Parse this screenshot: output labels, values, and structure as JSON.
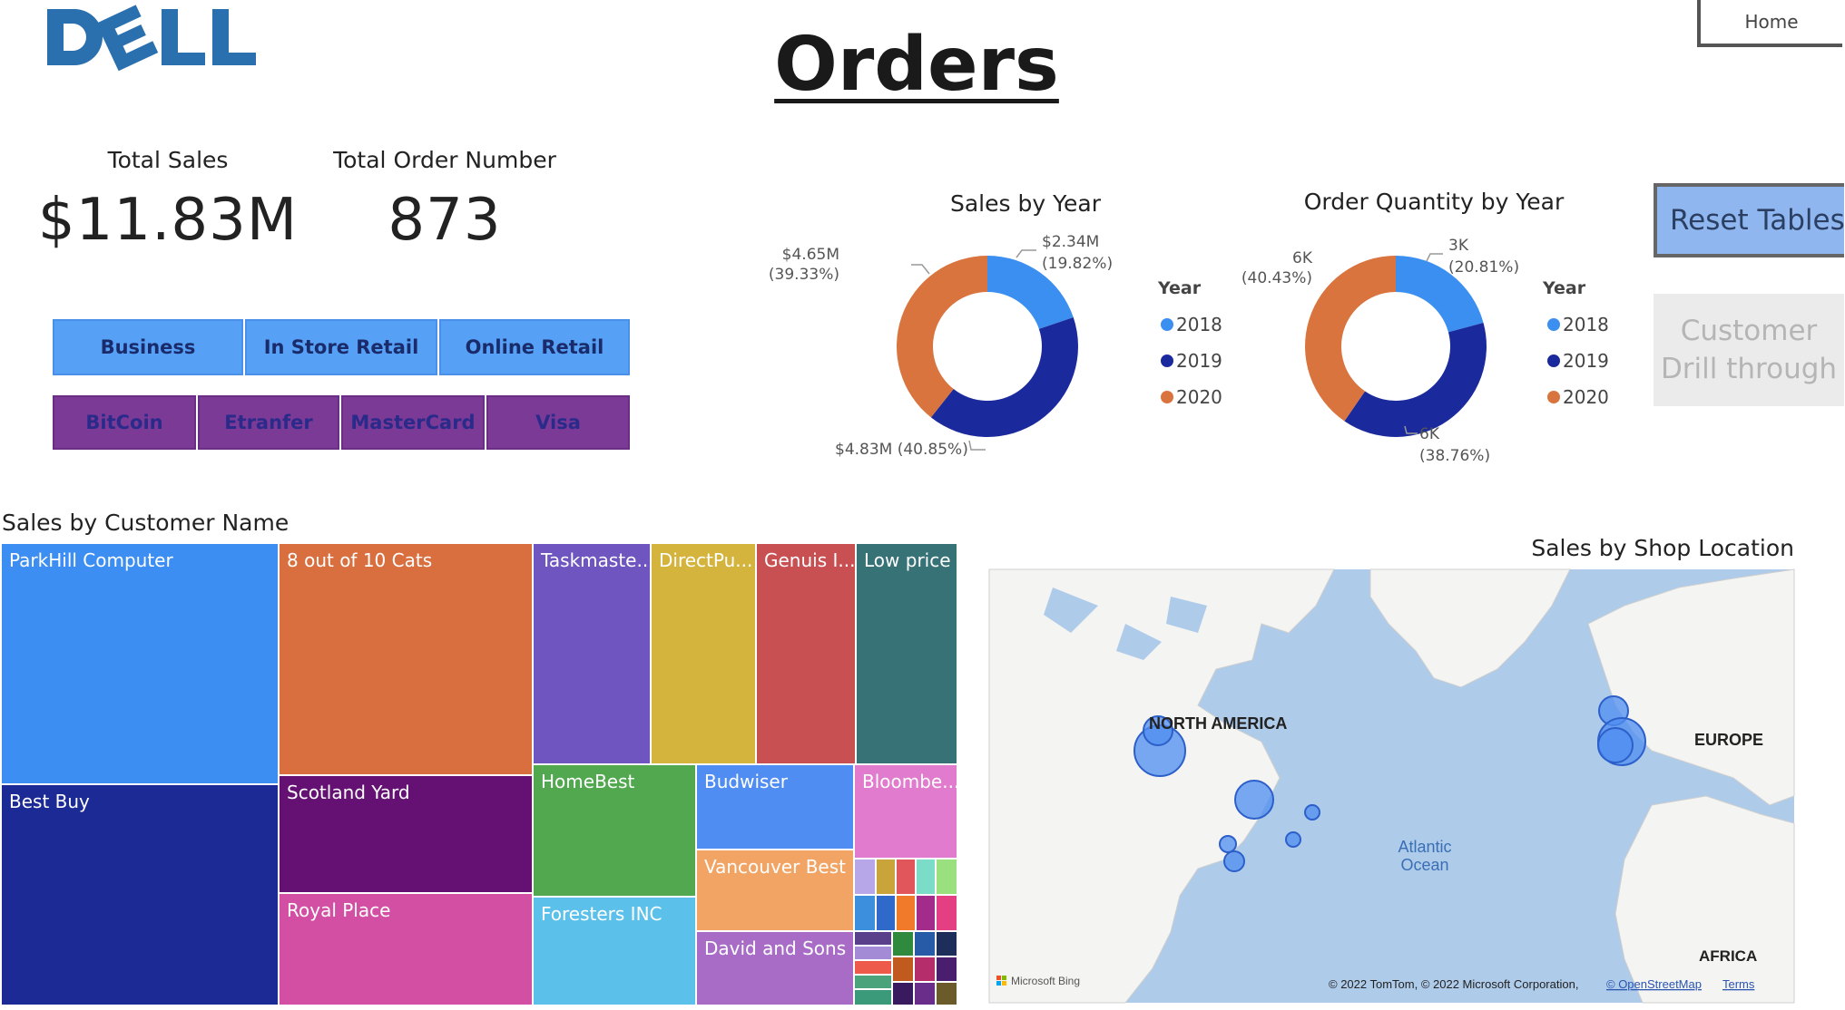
{
  "brand": {
    "logo_text": "DELL",
    "logo_color": "#2a6fae"
  },
  "header": {
    "title": "Orders",
    "home_label": "Home"
  },
  "kpis": {
    "total_sales_label": "Total Sales",
    "total_sales_value": "$11.83M",
    "total_orders_label": "Total Order Number",
    "total_orders_value": "873"
  },
  "filters": {
    "channels": [
      "Business",
      "In Store Retail",
      "Online Retail"
    ],
    "payments": [
      "BitCoin",
      "Etranfer",
      "MasterCard",
      "Visa"
    ]
  },
  "actions": {
    "reset_label": "Reset Tables",
    "drill_line1": "Customer",
    "drill_line2": "Drill through"
  },
  "legend": {
    "title": "Year",
    "years": [
      "2018",
      "2019",
      "2020"
    ],
    "colors": [
      "#3b8ff0",
      "#1a2a9c",
      "#d9743f"
    ]
  },
  "sales_by_year": {
    "title": "Sales by Year",
    "label_2018": "$2.34M",
    "pct_2018": "(19.82%)",
    "label_2020": "$4.65M",
    "pct_2020": "(39.33%)",
    "label_2019": "$4.83M (40.85%)"
  },
  "orders_by_year": {
    "title": "Order Quantity by Year",
    "label_2018": "3K",
    "pct_2018": "(20.81%)",
    "label_2020": "6K",
    "pct_2020": "(40.43%)",
    "label_2019": "6K",
    "pct_2019": "(38.76%)"
  },
  "treemap": {
    "title": "Sales by Customer Name",
    "tiles": [
      "ParkHill Computer",
      "Best Buy",
      "8 out of 10 Cats",
      "Scotland Yard",
      "Royal Place",
      "Taskmaste...",
      "DirectPu...",
      "Genuis I...",
      "Low price",
      "HomeBest",
      "Foresters INC",
      "Budwiser",
      "Vancouver Best",
      "David and Sons",
      "Bloombe..."
    ]
  },
  "map": {
    "title": "Sales by Shop Location",
    "labels": {
      "na": "NORTH AMERICA",
      "europe": "EUROPE",
      "africa": "AFRICA",
      "ocean_line1": "Atlantic",
      "ocean_line2": "Ocean"
    },
    "attribution": "© 2022 TomTom, © 2022 Microsoft Corporation,",
    "osm_link": "© OpenStreetMap",
    "terms_link": "Terms",
    "bing_label": "Microsoft Bing"
  },
  "chart_data": [
    {
      "type": "pie",
      "title": "Sales by Year",
      "categories": [
        "2018",
        "2019",
        "2020"
      ],
      "values": [
        2.34,
        4.83,
        4.65
      ],
      "unit": "$M",
      "percents": [
        19.82,
        40.85,
        39.33
      ]
    },
    {
      "type": "pie",
      "title": "Order Quantity by Year",
      "categories": [
        "2018",
        "2019",
        "2020"
      ],
      "percents": [
        20.81,
        38.76,
        40.43
      ]
    }
  ]
}
